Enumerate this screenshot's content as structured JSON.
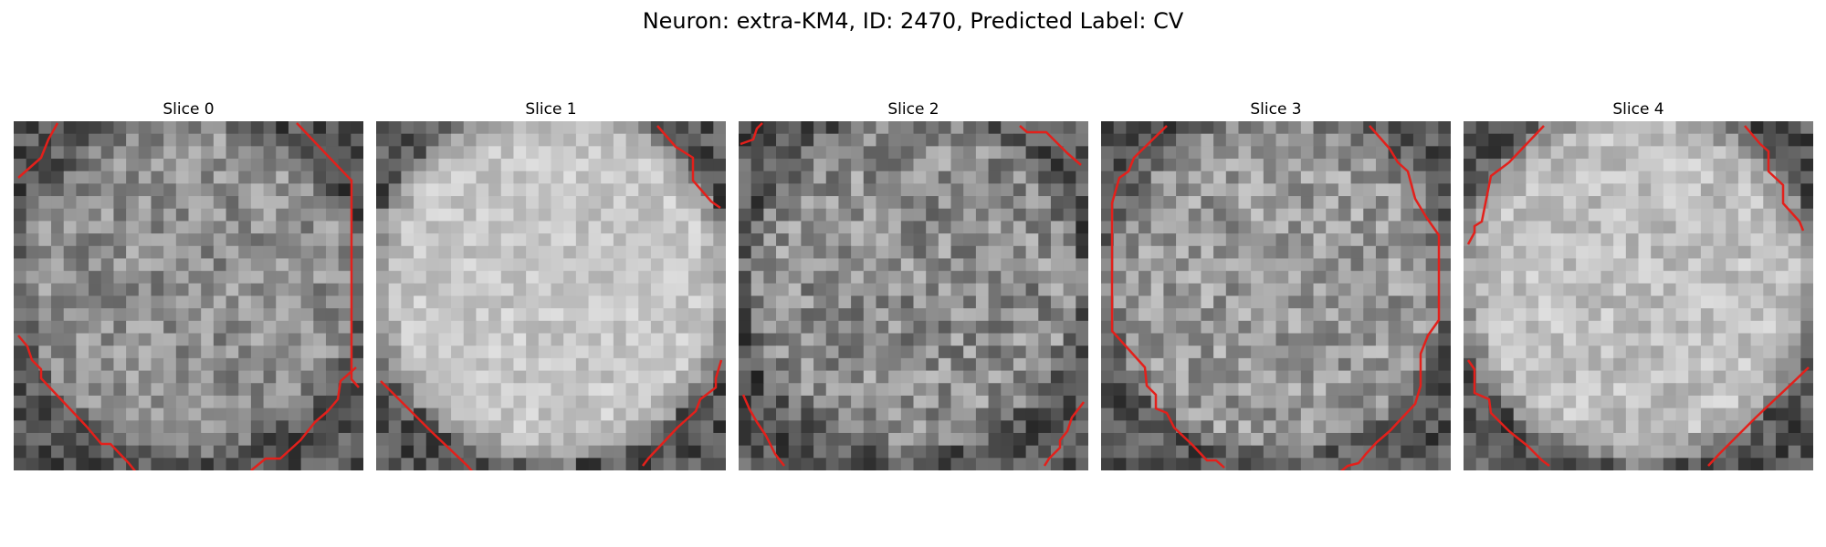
{
  "figure": {
    "title": "Neuron: extra-KM4, ID: 2470, Predicted Label: CV",
    "contour_color": "#e3201b",
    "panels": [
      {
        "title": "Slice 0",
        "image_description": "noisy grayscale micrograph of a round cell body, dark membrane at corners",
        "brightness": 0.56,
        "contrast": 0.17
      },
      {
        "title": "Slice 1",
        "image_description": "bright, low-contrast cell interior",
        "brightness": 0.78,
        "contrast": 0.1
      },
      {
        "title": "Slice 2",
        "image_description": "medium gray, highly textured cell interior",
        "brightness": 0.55,
        "contrast": 0.2
      },
      {
        "title": "Slice 3",
        "image_description": "medium gray cell interior with darker border",
        "brightness": 0.6,
        "contrast": 0.18
      },
      {
        "title": "Slice 4",
        "image_description": "bright cell interior with dark bottom membrane",
        "brightness": 0.75,
        "contrast": 0.12
      }
    ]
  }
}
